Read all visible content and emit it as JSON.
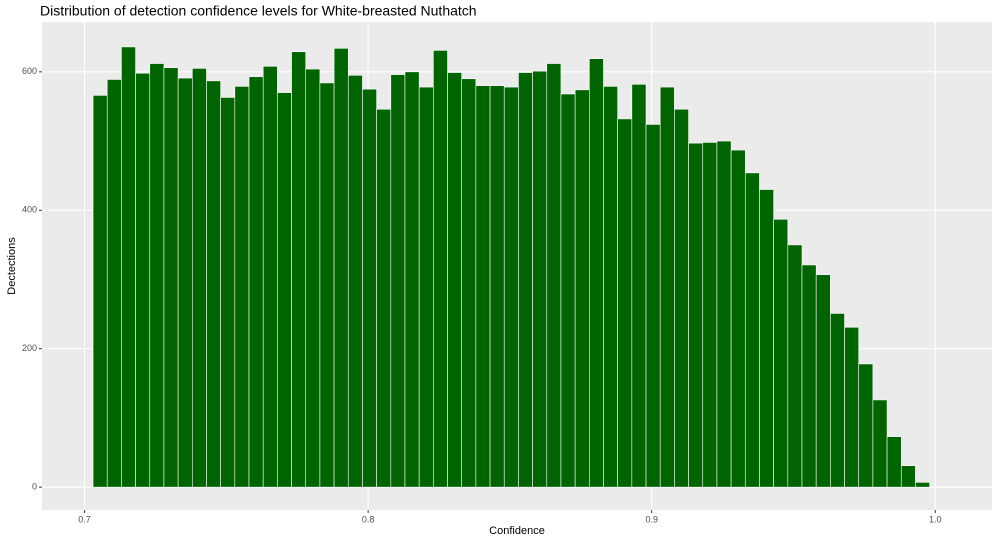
{
  "chart_data": {
    "type": "histogram",
    "title": "Distribution of detection confidence levels for White-breasted Nuthatch",
    "xlabel": "Confidence",
    "ylabel": "Dectections",
    "bins": [
      0.703,
      0.708,
      0.713,
      0.718,
      0.723,
      0.728,
      0.733,
      0.738,
      0.743,
      0.748,
      0.753,
      0.758,
      0.763,
      0.768,
      0.773,
      0.778,
      0.783,
      0.788,
      0.793,
      0.798,
      0.803,
      0.808,
      0.813,
      0.818,
      0.823,
      0.828,
      0.833,
      0.838,
      0.843,
      0.848,
      0.853,
      0.858,
      0.863,
      0.868,
      0.873,
      0.878,
      0.883,
      0.888,
      0.893,
      0.898,
      0.903,
      0.908,
      0.913,
      0.918,
      0.923,
      0.928,
      0.933,
      0.938,
      0.943,
      0.948,
      0.953,
      0.958,
      0.963,
      0.968,
      0.973,
      0.978,
      0.983,
      0.988,
      0.993,
      0.998
    ],
    "values": [
      566,
      589,
      636,
      598,
      612,
      606,
      591,
      605,
      587,
      563,
      579,
      593,
      608,
      570,
      629,
      604,
      584,
      634,
      595,
      575,
      546,
      596,
      600,
      578,
      631,
      599,
      590,
      580,
      580,
      578,
      599,
      601,
      612,
      568,
      574,
      619,
      579,
      532,
      582,
      524,
      578,
      546,
      497,
      498,
      500,
      487,
      454,
      430,
      387,
      350,
      321,
      307,
      251,
      231,
      178,
      126,
      73,
      31,
      7
    ],
    "color": "#006400",
    "edge_color": "#ffffff",
    "xlim": [
      0.685,
      1.02
    ],
    "xticks": [
      0.7,
      0.8,
      0.9,
      {
        "value": 1.0,
        "label": "1.0"
      }
    ],
    "ylim": [
      -33,
      672
    ],
    "yticks": [
      0,
      200,
      400,
      600
    ],
    "grid": true
  }
}
